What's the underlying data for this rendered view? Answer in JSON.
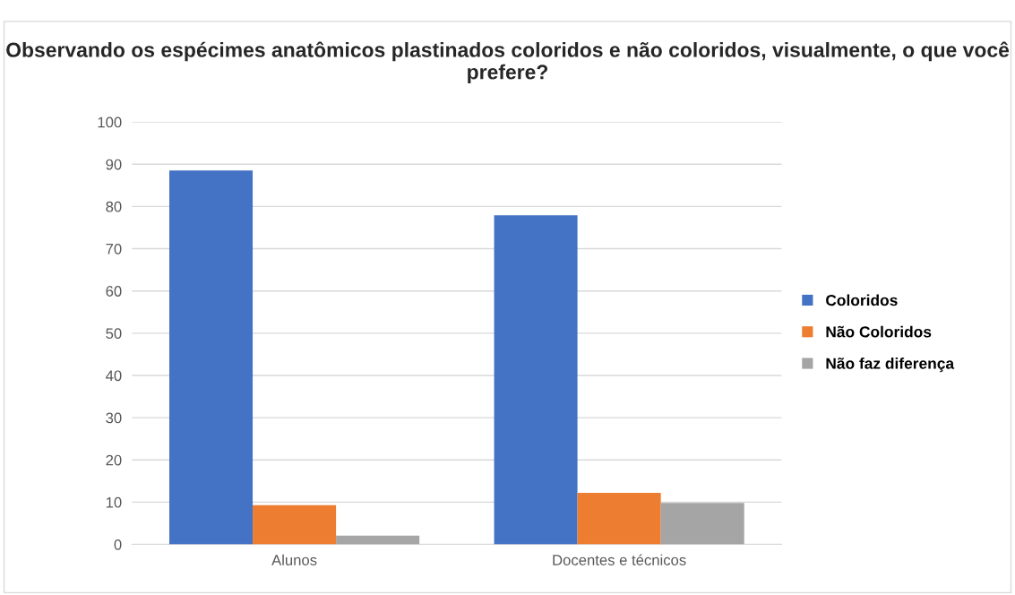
{
  "chart_data": {
    "type": "bar",
    "title": "Observando os espécimes anatômicos plastinados coloridos e não coloridos, visualmente, o que você prefere?",
    "categories": [
      "Alunos",
      "Docentes e técnicos"
    ],
    "series": [
      {
        "name": "Coloridos",
        "color": "#4472c4",
        "values": [
          88.5,
          77.9
        ]
      },
      {
        "name": "Não Coloridos",
        "color": "#ed7d31",
        "values": [
          9.3,
          12.2
        ]
      },
      {
        "name": "Não faz diferença",
        "color": "#a5a5a5",
        "values": [
          2.1,
          9.8
        ]
      }
    ],
    "ylim": [
      0,
      100
    ],
    "yticks": [
      0,
      10,
      20,
      30,
      40,
      50,
      60,
      70,
      80,
      90,
      100
    ],
    "grid": "y",
    "legend": "right"
  }
}
